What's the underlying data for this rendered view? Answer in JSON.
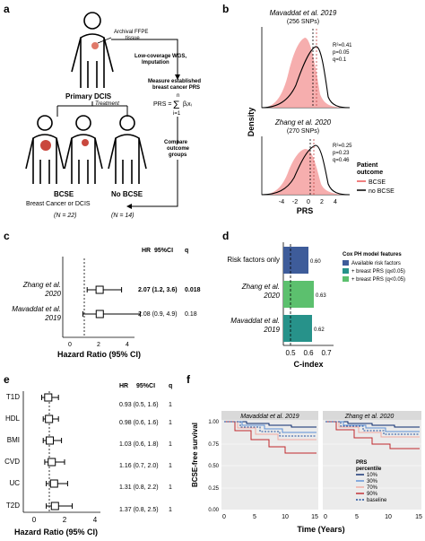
{
  "panels": {
    "a": "a",
    "b": "b",
    "c": "c",
    "d": "d",
    "e": "e",
    "f": "f"
  },
  "panel_a": {
    "tissue": [
      "Archival FFPE",
      "tissue"
    ],
    "wgs": [
      "Low-coverage WGS,",
      "Imputation"
    ],
    "primary": "Primary DCIS",
    "treatment": "Treatment",
    "measure": [
      "Measure established",
      "breast cancer PRS"
    ],
    "formula": {
      "lhs": "PRS =",
      "sum_top": "n",
      "sum": "Σ",
      "sum_bottom": "i=1",
      "term": "βᵢxᵢ"
    },
    "compare": [
      "Compare",
      "outcome",
      "groups"
    ],
    "bcse": {
      "title": "BCSE",
      "sub": "Breast Cancer or DCIS",
      "n": "(N = 22)"
    },
    "nobcse": {
      "title": "No BCSE",
      "n": "(N = 14)"
    }
  },
  "panel_b": {
    "ylabel": "Density",
    "xlabel": "PRS",
    "top": {
      "title": "Mavaddat et al. 2019",
      "snps": "(256 SNPs)",
      "stats": [
        "R²=0.41",
        "p=0.05",
        "q=0.1"
      ]
    },
    "bottom": {
      "title": "Zhang et al. 2020",
      "snps": "(270 SNPs)",
      "stats": [
        "R²=0.25",
        "p=0.23",
        "q=0.46"
      ]
    },
    "xticks": [
      "-4",
      "-2",
      "0",
      "2",
      "4"
    ],
    "legend": {
      "title": [
        "Patient",
        "outcome"
      ],
      "items": [
        "BCSE",
        "no BCSE"
      ]
    },
    "colors": {
      "bcse": "#f08080",
      "nobcse": "#000000"
    }
  },
  "panel_c": {
    "headers": [
      "HR",
      "95%CI",
      "q"
    ],
    "rows": [
      {
        "label": [
          "Zhang et al.",
          "2020"
        ],
        "hr": 2.07,
        "ci": [
          1.2,
          3.6
        ],
        "text": "2.07 (1.2, 3.6)",
        "q": "0.018",
        "bold": true
      },
      {
        "label": [
          "Mavaddat et al.",
          "2019"
        ],
        "hr": 2.08,
        "ci": [
          0.9,
          4.9
        ],
        "text": "2.08 (0.9, 4.9)",
        "q": "0.18",
        "bold": false
      }
    ],
    "xlabel": "Hazard Ratio (95%  CI)",
    "xticks": [
      "0",
      "2",
      "4"
    ],
    "ref": 1
  },
  "panel_d": {
    "chart_data": {
      "type": "bar",
      "categories": [
        "Risk factors only",
        "Zhang et al. 2020",
        "Mavaddat et al. 2019"
      ],
      "values": [
        0.6,
        0.63,
        0.62
      ],
      "labels": [
        "0.60",
        "0.63",
        "0.62"
      ],
      "colors": [
        "#3e5c9a",
        "#5cc06e",
        "#27928a"
      ],
      "xlabel": "C-index",
      "xticks": [
        "0.5",
        "0.6",
        "0.7"
      ],
      "xlim": [
        0.46,
        0.74
      ],
      "ref": 0.5
    },
    "ylabels": [
      [
        "Risk factors only"
      ],
      [
        "Zhang et al.",
        "2020"
      ],
      [
        "Mavaddat et al.",
        "2019"
      ]
    ],
    "legend": {
      "title": "Cox PH model features",
      "items": [
        "Available risk factors",
        "+ breast PRS (q≤0.05)",
        "+ breast PRS (q<0.05)"
      ]
    }
  },
  "panel_e": {
    "headers": [
      "HR",
      "95%CI",
      "q"
    ],
    "rows": [
      {
        "label": "T1D",
        "hr": 0.93,
        "ci": [
          0.5,
          1.6
        ],
        "text": "0.93 (0.5, 1.6)",
        "q": "1"
      },
      {
        "label": "HDL",
        "hr": 0.98,
        "ci": [
          0.6,
          1.6
        ],
        "text": "0.98 (0.6, 1.6)",
        "q": "1"
      },
      {
        "label": "BMI",
        "hr": 1.03,
        "ci": [
          0.6,
          1.8
        ],
        "text": "1.03 (0.6, 1.8)",
        "q": "1"
      },
      {
        "label": "CVD",
        "hr": 1.16,
        "ci": [
          0.7,
          2.0
        ],
        "text": "1.16 (0.7, 2.0)",
        "q": "1"
      },
      {
        "label": "UC",
        "hr": 1.31,
        "ci": [
          0.8,
          2.2
        ],
        "text": "1.31 (0.8, 2.2)",
        "q": "1"
      },
      {
        "label": "T2D",
        "hr": 1.37,
        "ci": [
          0.8,
          2.5
        ],
        "text": "1.37 (0.8, 2.5)",
        "q": "1"
      }
    ],
    "xlabel": "Hazard Ratio (95% CI)",
    "xticks": [
      "0",
      "2",
      "4"
    ],
    "ref": 1
  },
  "panel_f": {
    "ylabel": "BCSE-free survival",
    "xlabel": "Time (Years)",
    "titles": [
      "Mavaddat et al. 2019",
      "Zhang et al. 2020"
    ],
    "yticks": [
      "0.00",
      "0.25",
      "0.50",
      "0.75",
      "1.00"
    ],
    "xticks_left": [
      "0",
      "5",
      "10",
      "15"
    ],
    "xticks_right": [
      "0",
      "5",
      "10",
      "15"
    ],
    "legend": {
      "title": [
        "PRS",
        "percentile"
      ],
      "items": [
        "10%",
        "30%",
        "70%",
        "90%",
        "baseline"
      ]
    },
    "colors": [
      "#0a2a6e",
      "#5b8fd6",
      "#f0a9a0",
      "#c0282d",
      "#1f4f9e"
    ]
  }
}
